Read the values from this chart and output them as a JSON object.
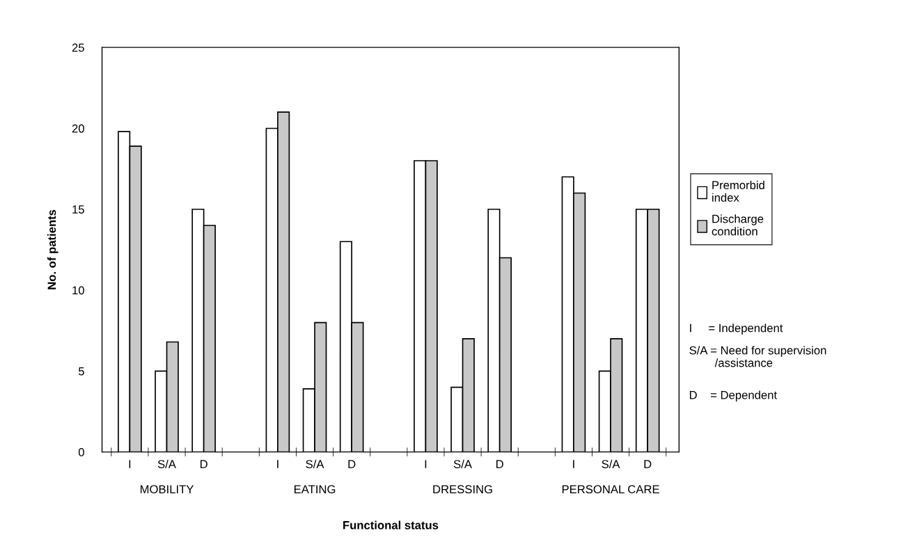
{
  "chart_data": {
    "type": "bar",
    "xlabel": "Functional status",
    "ylabel": "No. of patients",
    "categories": [
      "I",
      "S/A",
      "D",
      null,
      "I",
      "S/A",
      "D",
      null,
      "I",
      "S/A",
      "D",
      null,
      "I",
      "S/A",
      "D"
    ],
    "series": [
      {
        "name": "Premorbid index",
        "color": "#ffffff",
        "values": [
          19.8,
          5,
          15,
          null,
          20,
          3.9,
          13,
          null,
          18,
          4,
          15,
          null,
          17,
          5,
          15
        ]
      },
      {
        "name": "Discharge condition",
        "color": "#c8c8c8",
        "values": [
          18.9,
          6.8,
          14,
          null,
          21,
          8,
          8,
          null,
          18,
          7,
          12,
          null,
          16,
          7,
          15
        ]
      }
    ],
    "ylim": [
      0,
      25
    ],
    "yticks": [
      0,
      5,
      10,
      15,
      20,
      25
    ],
    "grid": false,
    "legend": "right",
    "annotations": [
      "MOBILITY",
      "EATING",
      "DRESSING",
      "PERSONAL CARE",
      "I     = Independent",
      "S/A = Need for supervision\n        /assistance",
      "D    = Dependent"
    ]
  }
}
